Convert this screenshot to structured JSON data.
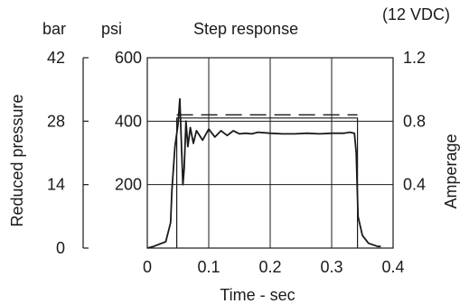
{
  "chart_data": {
    "type": "line",
    "title": "Step response",
    "note": "(12 VDC)",
    "xlabel": "Time  - sec",
    "x_ticks": [
      "0",
      "0.1",
      "0.2",
      "0.3",
      "0.4"
    ],
    "xlim": [
      0,
      0.4
    ],
    "y_left_outer": {
      "unit": "bar",
      "label": "Reduced pressure",
      "ticks": [
        "0",
        "14",
        "28",
        "42"
      ],
      "range": [
        0,
        42
      ]
    },
    "y_left_inner": {
      "unit": "psi",
      "ticks": [
        "200",
        "400",
        "600"
      ],
      "range": [
        0,
        600
      ]
    },
    "y_right": {
      "label": "Amperage",
      "ticks": [
        "0.4",
        "0.8",
        "1.2"
      ],
      "range": [
        0,
        1.2
      ]
    },
    "grid": true,
    "series": [
      {
        "style": "solid",
        "axis": "psi",
        "x": [
          0,
          0.01,
          0.03,
          0.038,
          0.04,
          0.045,
          0.05,
          0.053,
          0.056,
          0.058,
          0.06,
          0.063,
          0.066,
          0.07,
          0.075,
          0.08,
          0.09,
          0.1,
          0.11,
          0.12,
          0.13,
          0.14,
          0.15,
          0.16,
          0.17,
          0.18,
          0.2,
          0.22,
          0.24,
          0.26,
          0.28,
          0.3,
          0.32,
          0.33,
          0.337,
          0.34,
          0.343,
          0.35,
          0.36,
          0.375,
          0.38
        ],
        "y": [
          0,
          5,
          20,
          80,
          180,
          320,
          390,
          470,
          300,
          200,
          250,
          400,
          320,
          380,
          330,
          370,
          340,
          375,
          350,
          370,
          355,
          370,
          360,
          362,
          360,
          365,
          362,
          360,
          360,
          362,
          360,
          362,
          362,
          365,
          362,
          300,
          100,
          40,
          15,
          5,
          5
        ]
      },
      {
        "style": "dashed",
        "axis": "amperage",
        "x": [
          0.048,
          0.342
        ],
        "y": [
          0.84,
          0.84
        ]
      },
      {
        "style": "solid",
        "axis": "amperage",
        "x": [
          0.048,
          0.048,
          0.342,
          0.342
        ],
        "y": [
          0.0,
          0.82,
          0.82,
          0.0
        ]
      }
    ]
  }
}
